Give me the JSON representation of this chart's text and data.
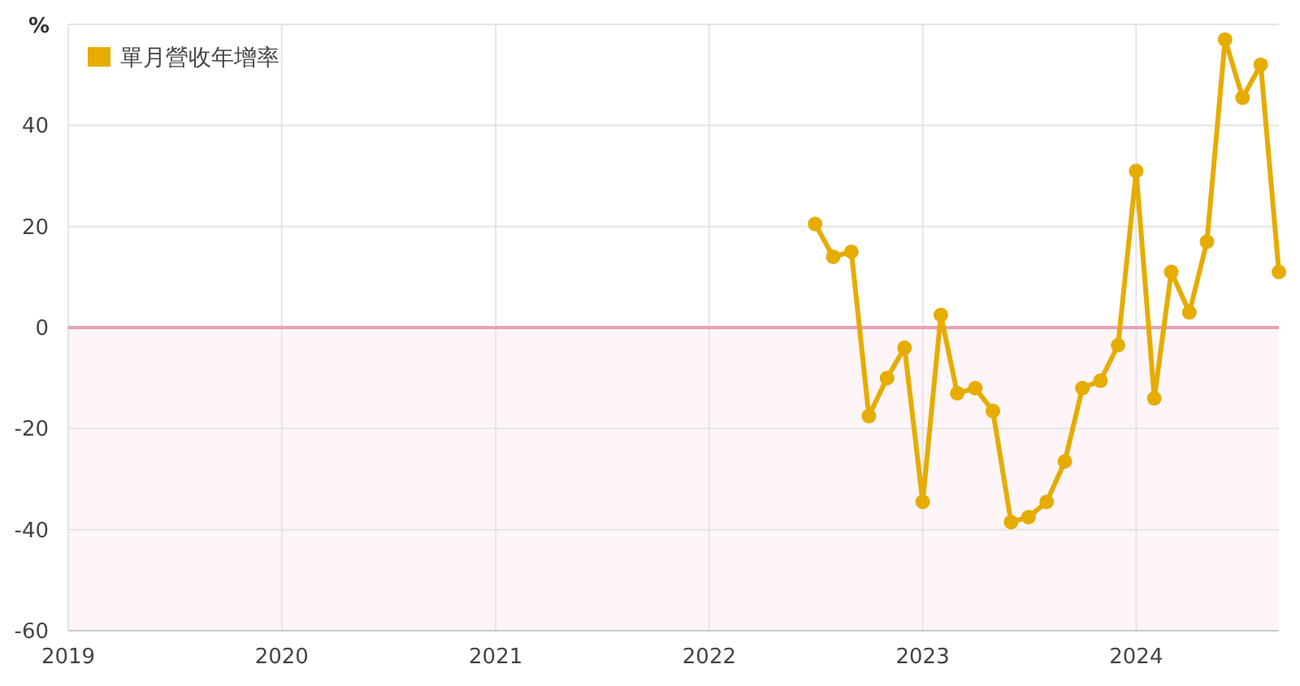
{
  "chart_data": {
    "type": "line",
    "ylabel": "%",
    "x": [
      "2022-07",
      "2022-08",
      "2022-09",
      "2022-10",
      "2022-11",
      "2022-12",
      "2023-01",
      "2023-02",
      "2023-03",
      "2023-04",
      "2023-05",
      "2023-06",
      "2023-07",
      "2023-08",
      "2023-09",
      "2023-10",
      "2023-11",
      "2023-12",
      "2024-01",
      "2024-02",
      "2024-03",
      "2024-04",
      "2024-05",
      "2024-06",
      "2024-07",
      "2024-08",
      "2024-09"
    ],
    "series": [
      {
        "name": "單月營收年增率",
        "color": "#e6ac00",
        "values": [
          20.5,
          14,
          15,
          -17.5,
          -10,
          -4,
          -34.5,
          2.5,
          -13,
          -12,
          -16.5,
          -38.5,
          -37.5,
          -34.5,
          -26.5,
          -12,
          -10.5,
          -3.5,
          31,
          -14,
          11,
          3,
          17,
          57,
          45.5,
          52,
          11
        ]
      }
    ],
    "xlim": [
      "2019-01",
      "2024-09"
    ],
    "xticks": [
      "2019",
      "2020",
      "2021",
      "2022",
      "2023",
      "2024"
    ],
    "ylim": [
      -60,
      60
    ],
    "yticks": [
      -60,
      -40,
      -20,
      0,
      20,
      40,
      {
        "value": 60,
        "label": null
      }
    ],
    "ref_lines": [
      {
        "axis": "y",
        "value": 0,
        "color": "#e8a0b4"
      }
    ],
    "bands": [
      {
        "axis": "y",
        "from": -60,
        "to": 0,
        "color": "#fdf5f7"
      }
    ],
    "grid": true,
    "legend": "top left",
    "marker": "circle",
    "line_style": "solid"
  }
}
